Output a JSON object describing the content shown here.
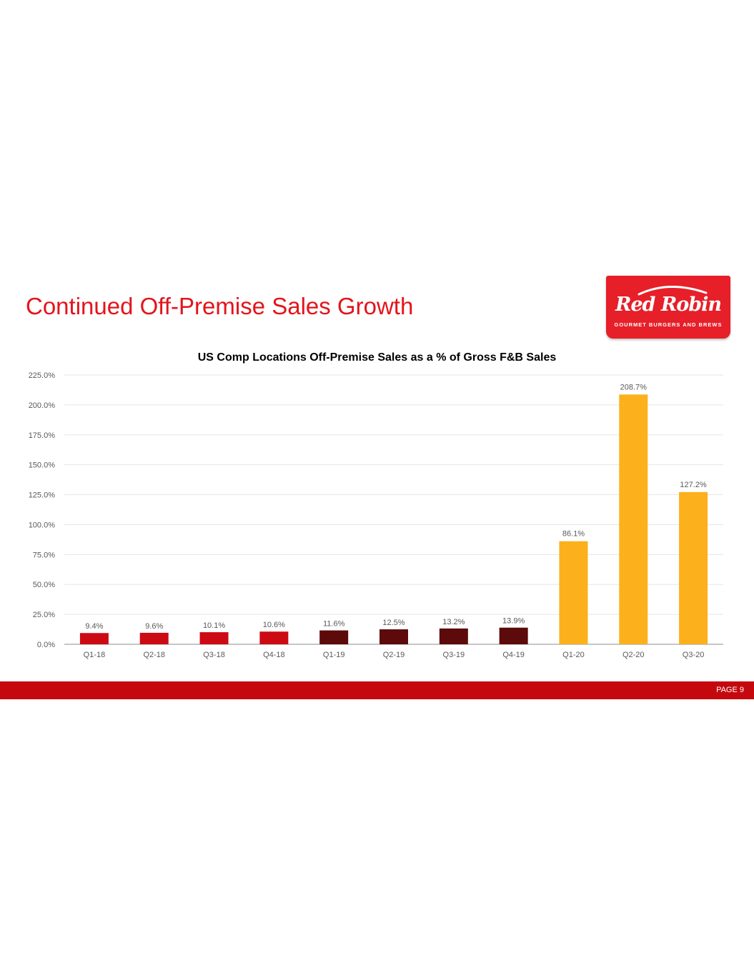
{
  "slide": {
    "title": "Continued Off-Premise Sales Growth",
    "page_label": "PAGE 9"
  },
  "logo": {
    "wordmark": "Red Robin",
    "tagline": "GOURMET BURGERS AND BREWS",
    "background": "#e61f29"
  },
  "colors": {
    "title_red": "#e3141b",
    "footer_red": "#c5080e",
    "bar_2018": "#cc0a14",
    "bar_2019": "#5c0a0a",
    "bar_2020": "#fbb01c"
  },
  "chart_data": {
    "type": "bar",
    "title": "US Comp Locations Off-Premise Sales as a % of Gross F&B Sales",
    "xlabel": "",
    "ylabel": "",
    "ylim": [
      0,
      225
    ],
    "yticks": [
      "0.0%",
      "25.0%",
      "50.0%",
      "75.0%",
      "100.0%",
      "125.0%",
      "150.0%",
      "175.0%",
      "200.0%",
      "225.0%"
    ],
    "grid": true,
    "categories": [
      "Q1-18",
      "Q2-18",
      "Q3-18",
      "Q4-18",
      "Q1-19",
      "Q2-19",
      "Q3-19",
      "Q4-19",
      "Q1-20",
      "Q2-20",
      "Q3-20"
    ],
    "values": [
      9.4,
      9.6,
      10.1,
      10.6,
      11.6,
      12.5,
      13.2,
      13.9,
      86.1,
      208.7,
      127.2
    ],
    "labels": [
      "9.4%",
      "9.6%",
      "10.1%",
      "10.6%",
      "11.6%",
      "12.5%",
      "13.2%",
      "13.9%",
      "86.1%",
      "208.7%",
      "127.2%"
    ],
    "bar_colors": [
      "#cc0a14",
      "#cc0a14",
      "#cc0a14",
      "#cc0a14",
      "#5c0a0a",
      "#5c0a0a",
      "#5c0a0a",
      "#5c0a0a",
      "#fbb01c",
      "#fbb01c",
      "#fbb01c"
    ]
  }
}
